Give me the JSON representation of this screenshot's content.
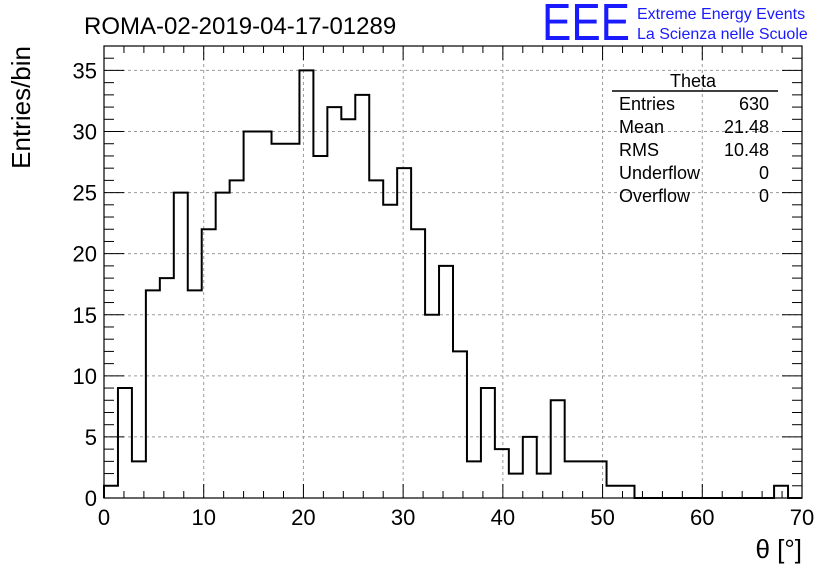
{
  "title": "ROMA-02-2019-04-17-01289",
  "logo": {
    "mark": "EEE",
    "line1": "Extreme Energy Events",
    "line2": "La Scienza nelle Scuole",
    "color": "#1a1aff"
  },
  "stats_box": {
    "title": "Theta",
    "rows": [
      {
        "label": "Entries",
        "value": "630"
      },
      {
        "label": "Mean",
        "value": "21.48"
      },
      {
        "label": "RMS",
        "value": "10.48"
      },
      {
        "label": "Underflow",
        "value": "0"
      },
      {
        "label": "Overflow",
        "value": "0"
      }
    ]
  },
  "chart_data": {
    "type": "bar",
    "style": "step-histogram",
    "xlabel": "θ [°]",
    "ylabel": "Entries/bin",
    "xlim": [
      0,
      70
    ],
    "ylim": [
      0,
      37
    ],
    "xticks": [
      0,
      10,
      20,
      30,
      40,
      50,
      60,
      70
    ],
    "yticks": [
      0,
      5,
      10,
      15,
      20,
      25,
      30,
      35
    ],
    "grid": true,
    "bin_width": 1.4,
    "bin_start": 0,
    "values": [
      1,
      9,
      3,
      17,
      18,
      25,
      17,
      22,
      25,
      26,
      30,
      30,
      29,
      29,
      35,
      28,
      32,
      31,
      33,
      26,
      24,
      27,
      22,
      15,
      19,
      12,
      3,
      9,
      4,
      2,
      5,
      2,
      8,
      3,
      3,
      3,
      1,
      1,
      0,
      0,
      0,
      0,
      0,
      0,
      0,
      0,
      0,
      0,
      1,
      0
    ]
  }
}
